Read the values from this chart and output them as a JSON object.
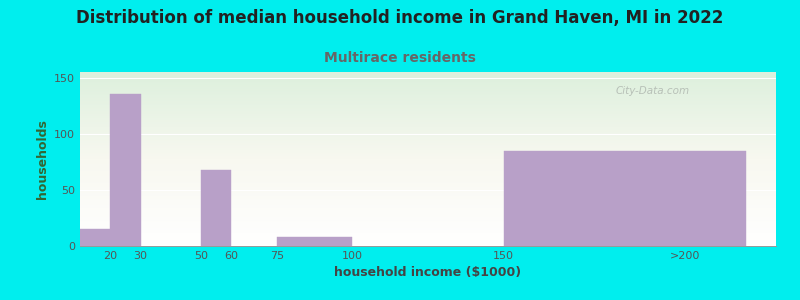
{
  "title": "Distribution of median household income in Grand Haven, MI in 2022",
  "subtitle": "Multirace residents",
  "xlabel": "household income ($1000)",
  "ylabel": "households",
  "background_color": "#00EEEE",
  "bar_color": "#b8a0c8",
  "categories": [
    "<20",
    "20-30",
    "30-50",
    "50-60",
    "60-75",
    "75-100",
    "100-150",
    ">200"
  ],
  "values": [
    15,
    135,
    0,
    68,
    0,
    8,
    0,
    85
  ],
  "bar_lefts": [
    10,
    20,
    30,
    50,
    60,
    75,
    100,
    150
  ],
  "bar_widths": [
    10,
    10,
    20,
    10,
    15,
    25,
    50,
    80
  ],
  "xtick_positions": [
    20,
    30,
    50,
    60,
    75,
    100,
    150
  ],
  "xtick_labels": [
    "20",
    "30",
    "50",
    "60",
    "75",
    "100",
    "150"
  ],
  "x200_pos": 210,
  "xlim": [
    10,
    240
  ],
  "ylim": [
    0,
    155
  ],
  "yticks": [
    0,
    50,
    100,
    150
  ],
  "title_fontsize": 12,
  "subtitle_fontsize": 10,
  "axis_label_fontsize": 9,
  "tick_fontsize": 8,
  "title_color": "#222222",
  "subtitle_color": "#666666",
  "ylabel_color": "#336633",
  "xlabel_color": "#444444",
  "watermark_text": "City-Data.com",
  "watermark_color": "#b0b8b0",
  "grad_bottom": "#ddf0dd",
  "grad_top": "#f8f8f0"
}
